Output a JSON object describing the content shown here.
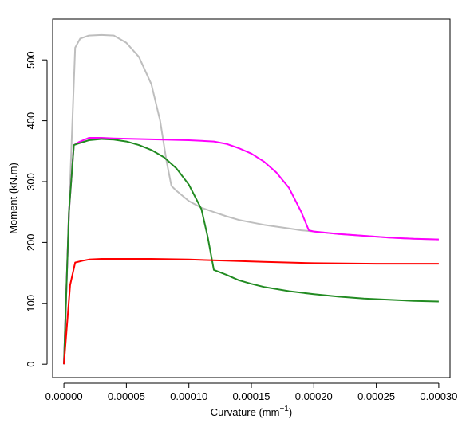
{
  "chart_data": {
    "type": "line",
    "title": "",
    "xlabel": "Curvature (mm",
    "xlabel_sup": "−1",
    "xlabel_close": ")",
    "ylabel": "Moment (kN.m)",
    "xlim": [
      -9e-06,
      0.000309
    ],
    "ylim": [
      -22,
      567
    ],
    "x_ticks": [
      0,
      5e-05,
      0.0001,
      0.00015,
      0.0002,
      0.00025,
      0.0003
    ],
    "x_tick_labels": [
      "0.00000",
      "0.00005",
      "0.00010",
      "0.00015",
      "0.00020",
      "0.00025",
      "0.00030"
    ],
    "y_ticks": [
      0,
      100,
      200,
      300,
      400,
      500
    ],
    "y_tick_labels": [
      "0",
      "100",
      "200",
      "300",
      "400",
      "500"
    ],
    "grid": false,
    "legend": "none",
    "series": [
      {
        "color": "#BEBEBE",
        "points": [
          [
            0,
            0
          ],
          [
            5e-06,
            300
          ],
          [
            9e-06,
            520
          ],
          [
            1.3e-05,
            535
          ],
          [
            2e-05,
            540
          ],
          [
            3e-05,
            541
          ],
          [
            4e-05,
            540
          ],
          [
            5e-05,
            528
          ],
          [
            6e-05,
            505
          ],
          [
            7e-05,
            460
          ],
          [
            7.7e-05,
            400
          ],
          [
            8.2e-05,
            335
          ],
          [
            8.6e-05,
            293
          ],
          [
            9e-05,
            285
          ],
          [
            0.0001,
            268
          ],
          [
            0.00011,
            257
          ],
          [
            0.00012,
            250
          ],
          [
            0.00013,
            243
          ],
          [
            0.00014,
            237
          ],
          [
            0.00015,
            233
          ],
          [
            0.00016,
            229
          ],
          [
            0.00017,
            226
          ],
          [
            0.00018,
            223
          ],
          [
            0.00019,
            220
          ],
          [
            0.0002,
            218
          ],
          [
            0.00022,
            214
          ],
          [
            0.00024,
            211
          ],
          [
            0.00026,
            208
          ],
          [
            0.00028,
            206
          ],
          [
            0.0003,
            205
          ]
        ]
      },
      {
        "color": "#FF00FF",
        "points": [
          [
            0,
            0
          ],
          [
            4e-06,
            250
          ],
          [
            8e-06,
            360
          ],
          [
            1.2e-05,
            365
          ],
          [
            2e-05,
            372
          ],
          [
            3e-05,
            372
          ],
          [
            4e-05,
            371
          ],
          [
            6e-05,
            370
          ],
          [
            8e-05,
            369
          ],
          [
            0.0001,
            368
          ],
          [
            0.00012,
            366
          ],
          [
            0.00013,
            362
          ],
          [
            0.00014,
            355
          ],
          [
            0.00015,
            346
          ],
          [
            0.00016,
            333
          ],
          [
            0.00017,
            315
          ],
          [
            0.00018,
            290
          ],
          [
            0.00019,
            250
          ],
          [
            0.000196,
            220
          ],
          [
            0.0002,
            218
          ],
          [
            0.00022,
            214
          ],
          [
            0.00024,
            211
          ],
          [
            0.00026,
            208
          ],
          [
            0.00028,
            206
          ],
          [
            0.0003,
            205
          ]
        ]
      },
      {
        "color": "#228B22",
        "points": [
          [
            0,
            0
          ],
          [
            4e-06,
            250
          ],
          [
            8e-06,
            360
          ],
          [
            1.2e-05,
            363
          ],
          [
            2e-05,
            368
          ],
          [
            3e-05,
            370
          ],
          [
            4e-05,
            369
          ],
          [
            5e-05,
            366
          ],
          [
            6e-05,
            360
          ],
          [
            7e-05,
            352
          ],
          [
            8e-05,
            340
          ],
          [
            9e-05,
            322
          ],
          [
            0.0001,
            295
          ],
          [
            0.00011,
            255
          ],
          [
            0.000115,
            210
          ],
          [
            0.00012,
            155
          ],
          [
            0.00013,
            147
          ],
          [
            0.00014,
            138
          ],
          [
            0.00015,
            132
          ],
          [
            0.00016,
            127
          ],
          [
            0.00018,
            120
          ],
          [
            0.0002,
            115
          ],
          [
            0.00022,
            111
          ],
          [
            0.00024,
            108
          ],
          [
            0.00026,
            106
          ],
          [
            0.00028,
            104
          ],
          [
            0.0003,
            103
          ]
        ]
      },
      {
        "color": "#FF0000",
        "points": [
          [
            0,
            0
          ],
          [
            5e-06,
            130
          ],
          [
            9e-06,
            167
          ],
          [
            1.5e-05,
            170
          ],
          [
            2e-05,
            172
          ],
          [
            3e-05,
            173
          ],
          [
            5e-05,
            173
          ],
          [
            7e-05,
            173
          ],
          [
            0.0001,
            172
          ],
          [
            0.00013,
            170
          ],
          [
            0.00016,
            168
          ],
          [
            0.0002,
            166
          ],
          [
            0.00025,
            165
          ],
          [
            0.0003,
            165
          ]
        ]
      }
    ]
  }
}
